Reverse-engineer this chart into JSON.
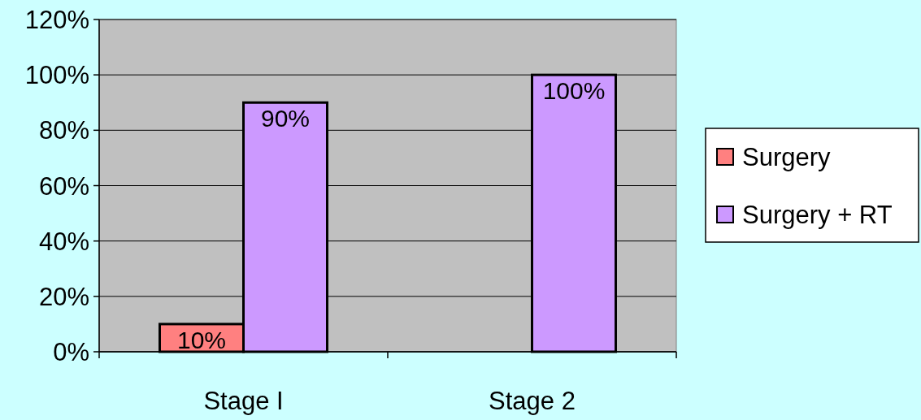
{
  "chart_data": {
    "type": "bar",
    "categories": [
      "Stage I",
      "Stage 2"
    ],
    "series": [
      {
        "name": "Surgery",
        "color": "#ff8080",
        "values": [
          10,
          null
        ],
        "value_labels": [
          "10%",
          null
        ]
      },
      {
        "name": "Surgery + RT",
        "color": "#cc99ff",
        "values": [
          90,
          100
        ],
        "value_labels": [
          "90%",
          "100%"
        ]
      }
    ],
    "ylim": [
      0,
      120
    ],
    "yticks": [
      {
        "value": 0,
        "label": "0%"
      },
      {
        "value": 20,
        "label": "20%"
      },
      {
        "value": 40,
        "label": "40%"
      },
      {
        "value": 60,
        "label": "60%"
      },
      {
        "value": 80,
        "label": "80%"
      },
      {
        "value": 100,
        "label": "100%"
      },
      {
        "value": 120,
        "label": "120%"
      }
    ],
    "grid": "y",
    "legend": "right"
  }
}
